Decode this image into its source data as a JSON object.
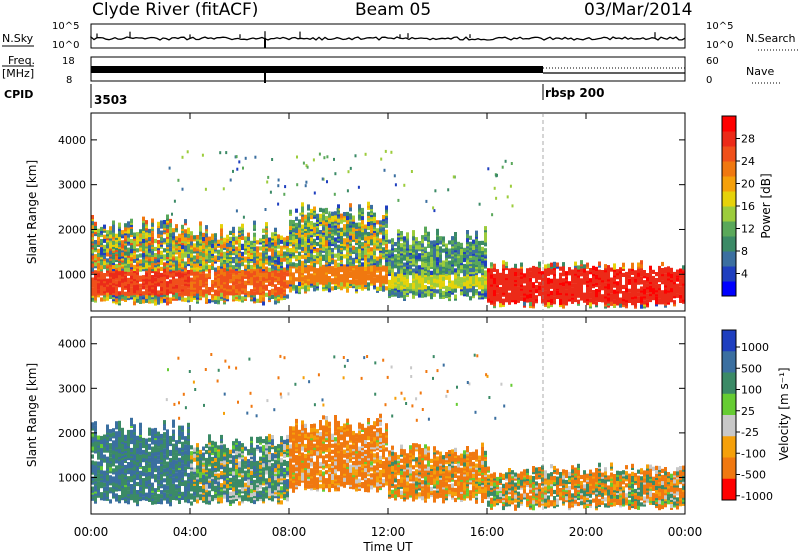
{
  "header": {
    "station": "Clyde River (fitACF)",
    "beam": "Beam 05",
    "date": "03/Mar/2014"
  },
  "params": {
    "nsky_label": "N.Sky",
    "nsearch_label": "N.Search",
    "freq_label_line1": "Freq.",
    "freq_label_line2": "[MHz]",
    "nave_label": "Nave",
    "cpid_label": "CPID",
    "log_tick_top": "10^5",
    "log_tick_bot": "10^0",
    "freq_ticks": [
      "18",
      "8"
    ],
    "nave_ticks": [
      "60",
      "0"
    ],
    "cpid_values": [
      {
        "t": 0.0,
        "label": "3503"
      },
      {
        "t": 18.0,
        "label": "rbsp 200"
      }
    ]
  },
  "chart_data": [
    {
      "type": "heatmap",
      "panel": "power",
      "ylabel": "Slant Range [km]",
      "ylim": [
        180,
        4600
      ],
      "yticks": [
        "1000",
        "2000",
        "3000",
        "4000"
      ],
      "ytick_values": [
        1000,
        2000,
        3000,
        4000
      ],
      "colorbar": {
        "label": "Power [dB]",
        "range": [
          0,
          32
        ],
        "ticks": [
          "4",
          "8",
          "12",
          "16",
          "20",
          "24",
          "28"
        ],
        "tick_values": [
          4,
          8,
          12,
          16,
          20,
          24,
          28
        ],
        "colors": [
          "#0000ff",
          "#1f3fbf",
          "#3b6fa0",
          "#3b8a66",
          "#5aa85a",
          "#9ccc3c",
          "#e6d20a",
          "#f5a00a",
          "#f07810",
          "#f0501a",
          "#ec2a18",
          "#ff0000"
        ]
      },
      "observations": [
        {
          "t0": 0.0,
          "t1": 4.0,
          "rmin": 350,
          "rmax": 2350,
          "core": [
            550,
            1100
          ],
          "power": 28
        },
        {
          "t0": 4.0,
          "t1": 8.0,
          "rmin": 350,
          "rmax": 2250,
          "core": [
            550,
            1100
          ],
          "power": 26
        },
        {
          "t0": 8.0,
          "t1": 12.0,
          "rmin": 600,
          "rmax": 2600,
          "core": [
            800,
            1200
          ],
          "power": 24
        },
        {
          "t0": 12.0,
          "t1": 16.0,
          "rmin": 450,
          "rmax": 2100,
          "core": [
            700,
            1000
          ],
          "power": 18
        },
        {
          "t0": 16.0,
          "t1": 24.0,
          "rmin": 280,
          "rmax": 1300,
          "core": [
            350,
            1150
          ],
          "power": 30
        }
      ]
    },
    {
      "type": "heatmap",
      "panel": "velocity",
      "xlabel": "Time UT",
      "xticks": [
        "00:00",
        "04:00",
        "08:00",
        "12:00",
        "16:00",
        "20:00",
        "00:00"
      ],
      "xtick_values": [
        0,
        4,
        8,
        12,
        16,
        20,
        24
      ],
      "ylabel": "Slant Range [km]",
      "ylim": [
        180,
        4600
      ],
      "yticks": [
        "1000",
        "2000",
        "3000",
        "4000"
      ],
      "ytick_values": [
        1000,
        2000,
        3000,
        4000
      ],
      "colorbar": {
        "label": "Velocity [m s⁻¹]",
        "ticks": [
          "1000",
          "500",
          "100",
          "25",
          "-25",
          "-100",
          "-500",
          "-1000"
        ],
        "colors": [
          "#1f3fbf",
          "#3b6fa0",
          "#3b8a66",
          "#66cc33",
          "#c8c8c8",
          "#f5a00a",
          "#f07810",
          "#ff0000"
        ]
      },
      "observations": [
        {
          "t0": 0.0,
          "t1": 4.0,
          "rmin": 400,
          "rmax": 2350,
          "velocity": 300
        },
        {
          "t0": 4.0,
          "t1": 8.0,
          "rmin": 400,
          "rmax": 2000,
          "velocity": 150
        },
        {
          "t0": 8.0,
          "t1": 12.0,
          "rmin": 700,
          "rmax": 2400,
          "velocity": -200
        },
        {
          "t0": 12.0,
          "t1": 16.0,
          "rmin": 450,
          "rmax": 1800,
          "velocity": -150
        },
        {
          "t0": 16.0,
          "t1": 24.0,
          "rmin": 300,
          "rmax": 1300,
          "velocity": -60
        }
      ]
    }
  ]
}
